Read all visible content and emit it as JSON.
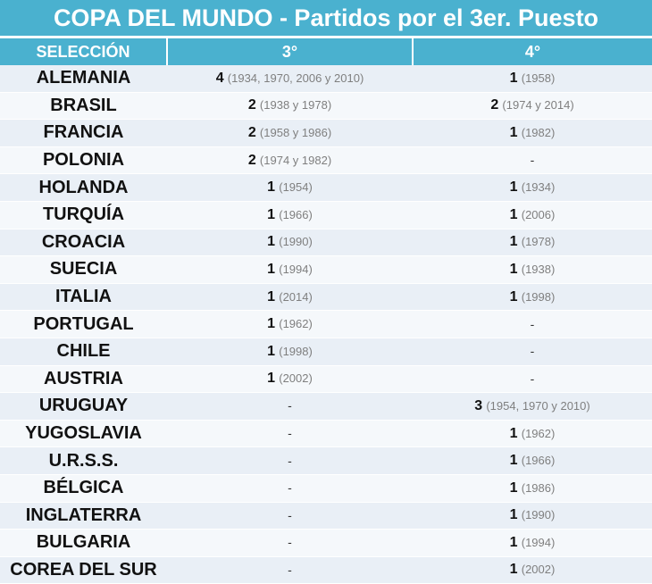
{
  "title": "COPA DEL MUNDO - Partidos por el 3er. Puesto",
  "headers": [
    "SELECCIÓN",
    "3°",
    "4°"
  ],
  "rows": [
    {
      "team": "ALEMANIA",
      "third": {
        "n": "4",
        "years": "(1934, 1970, 2006 y 2010)"
      },
      "fourth": {
        "n": "1",
        "years": "(1958)"
      }
    },
    {
      "team": "BRASIL",
      "third": {
        "n": "2",
        "years": "(1938 y 1978)"
      },
      "fourth": {
        "n": "2",
        "years": "(1974 y 2014)"
      }
    },
    {
      "team": "FRANCIA",
      "third": {
        "n": "2",
        "years": "(1958 y 1986)"
      },
      "fourth": {
        "n": "1",
        "years": "(1982)"
      }
    },
    {
      "team": "POLONIA",
      "third": {
        "n": "2",
        "years": "(1974 y 1982)"
      },
      "fourth": {
        "n": "-",
        "years": ""
      }
    },
    {
      "team": "HOLANDA",
      "third": {
        "n": "1",
        "years": "(1954)"
      },
      "fourth": {
        "n": "1",
        "years": "(1934)"
      }
    },
    {
      "team": "TURQUÍA",
      "third": {
        "n": "1",
        "years": "(1966)"
      },
      "fourth": {
        "n": "1",
        "years": "(2006)"
      }
    },
    {
      "team": "CROACIA",
      "third": {
        "n": "1",
        "years": "(1990)"
      },
      "fourth": {
        "n": "1",
        "years": "(1978)"
      }
    },
    {
      "team": "SUECIA",
      "third": {
        "n": "1",
        "years": "(1994)"
      },
      "fourth": {
        "n": "1",
        "years": "(1938)"
      }
    },
    {
      "team": "ITALIA",
      "third": {
        "n": "1",
        "years": "(2014)"
      },
      "fourth": {
        "n": "1",
        "years": "(1998)"
      }
    },
    {
      "team": "PORTUGAL",
      "third": {
        "n": "1",
        "years": "(1962)"
      },
      "fourth": {
        "n": "-",
        "years": ""
      }
    },
    {
      "team": "CHILE",
      "third": {
        "n": "1",
        "years": "(1998)"
      },
      "fourth": {
        "n": "-",
        "years": ""
      }
    },
    {
      "team": "AUSTRIA",
      "third": {
        "n": "1",
        "years": "(2002)"
      },
      "fourth": {
        "n": "-",
        "years": ""
      }
    },
    {
      "team": "URUGUAY",
      "third": {
        "n": "-",
        "years": ""
      },
      "fourth": {
        "n": "3",
        "years": "(1954, 1970 y 2010)"
      }
    },
    {
      "team": "YUGOSLAVIA",
      "third": {
        "n": "-",
        "years": ""
      },
      "fourth": {
        "n": "1",
        "years": "(1962)"
      }
    },
    {
      "team": "U.R.S.S.",
      "third": {
        "n": "-",
        "years": ""
      },
      "fourth": {
        "n": "1",
        "years": "(1966)"
      }
    },
    {
      "team": "BÉLGICA",
      "third": {
        "n": "-",
        "years": ""
      },
      "fourth": {
        "n": "1",
        "years": "(1986)"
      }
    },
    {
      "team": "INGLATERRA",
      "third": {
        "n": "-",
        "years": ""
      },
      "fourth": {
        "n": "1",
        "years": "(1990)"
      }
    },
    {
      "team": "BULGARIA",
      "third": {
        "n": "-",
        "years": ""
      },
      "fourth": {
        "n": "1",
        "years": "(1994)"
      }
    },
    {
      "team": "COREA DEL SUR",
      "third": {
        "n": "-",
        "years": ""
      },
      "fourth": {
        "n": "1",
        "years": "(2002)"
      }
    }
  ],
  "colors": {
    "header": "#4ab1cf",
    "row_odd": "#e9eff6",
    "row_even": "#f5f8fb",
    "years": "#7f7f7f"
  }
}
